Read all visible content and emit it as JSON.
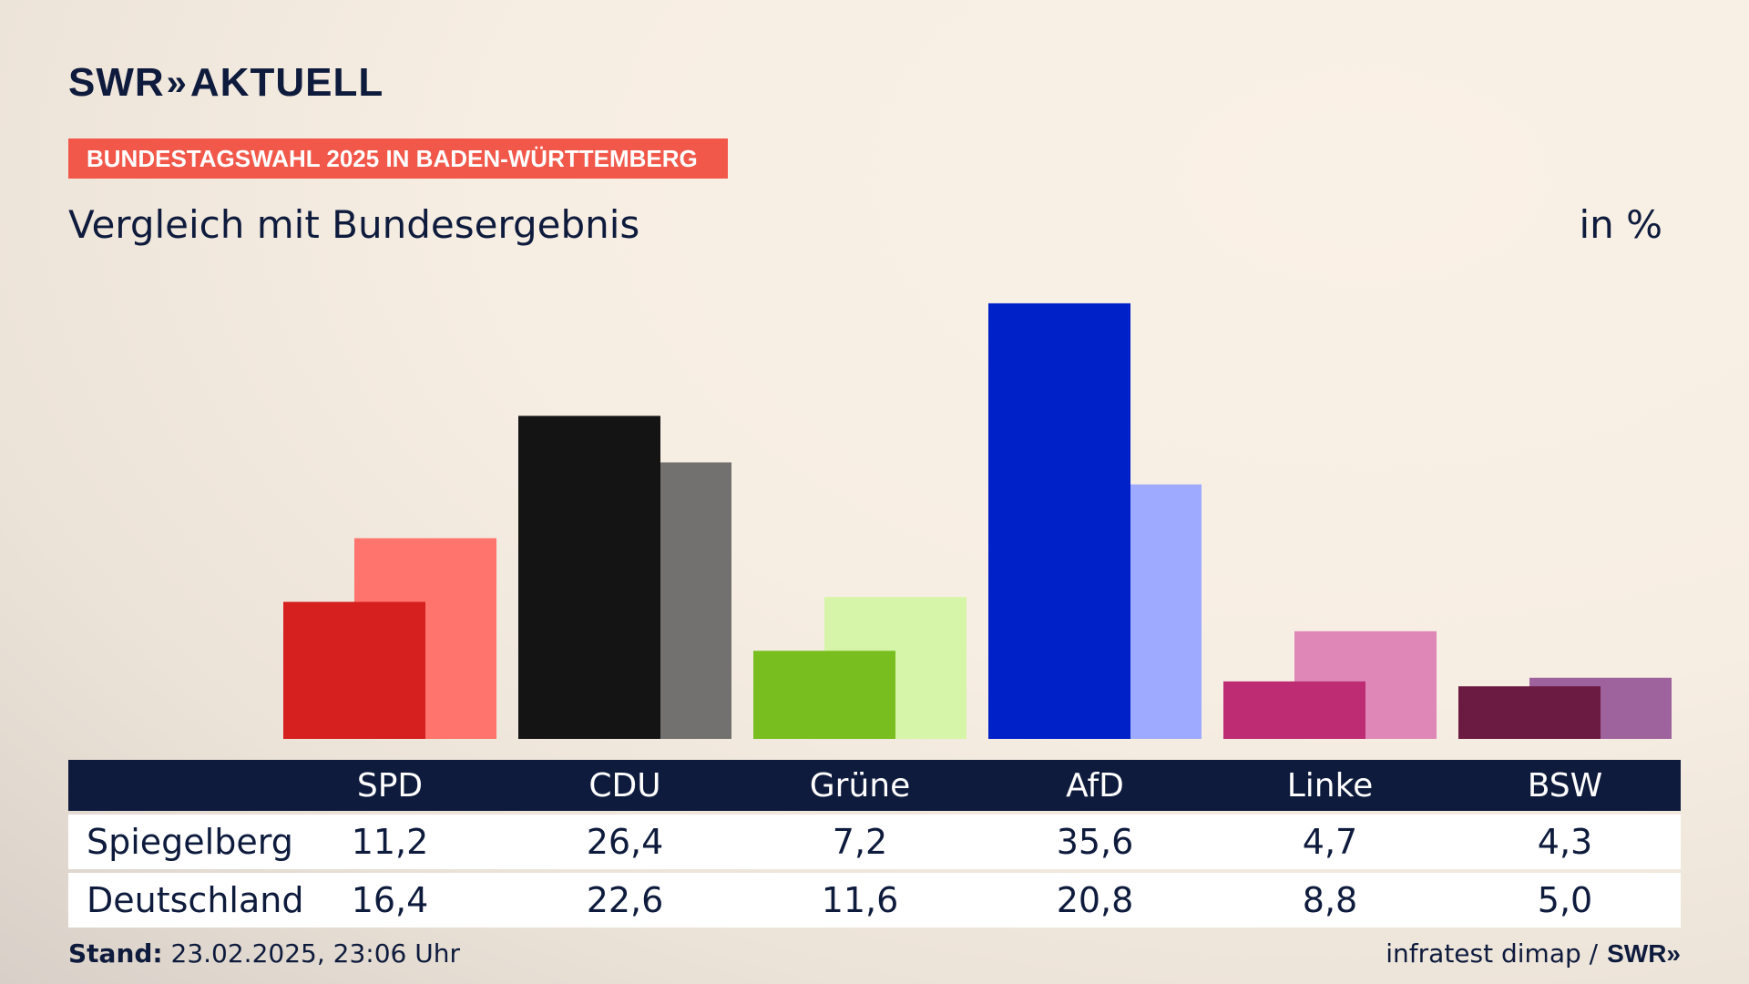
{
  "header": {
    "logo_text": "SWR",
    "logo_chevrons": "»",
    "logo_suffix": "AKTUELL",
    "badge": "BUNDESTAGSWAHL 2025 IN BADEN-WÜRTTEMBERG",
    "subtitle": "Vergleich mit Bundesergebnis",
    "unit": "in %"
  },
  "colors": {
    "navy": "#0e1b3d",
    "badge": "#f2584a"
  },
  "chart_data": {
    "type": "bar",
    "title": "Vergleich mit Bundesergebnis",
    "ylabel": "in %",
    "ylim": [
      0,
      40
    ],
    "grid": false,
    "categories": [
      "SPD",
      "CDU",
      "Grüne",
      "AfD",
      "Linke",
      "BSW"
    ],
    "series": [
      {
        "name": "Spiegelberg",
        "values": [
          11.2,
          26.4,
          7.2,
          35.6,
          4.7,
          4.3
        ],
        "colors": [
          "#d62020",
          "#141414",
          "#78be1e",
          "#0020c8",
          "#be2d73",
          "#6b1a42"
        ]
      },
      {
        "name": "Deutschland",
        "values": [
          16.4,
          22.6,
          11.6,
          20.8,
          8.8,
          5.0
        ],
        "colors": [
          "#ff746c",
          "#73716f",
          "#d6f5a8",
          "#9eaaff",
          "#df88b8",
          "#9e639c"
        ]
      }
    ]
  },
  "table": {
    "headers": [
      "SPD",
      "CDU",
      "Grüne",
      "AfD",
      "Linke",
      "BSW"
    ],
    "rows": [
      {
        "label": "Spiegelberg",
        "values": [
          "11,2",
          "26,4",
          "7,2",
          "35,6",
          "4,7",
          "4,3"
        ]
      },
      {
        "label": "Deutschland",
        "values": [
          "16,4",
          "22,6",
          "11,6",
          "20,8",
          "8,8",
          "5,0"
        ]
      }
    ]
  },
  "footer": {
    "stand_label": "Stand:",
    "stand_value": " 23.02.2025, 23:06 Uhr",
    "source": "infratest dimap /",
    "brand": "SWR»"
  }
}
